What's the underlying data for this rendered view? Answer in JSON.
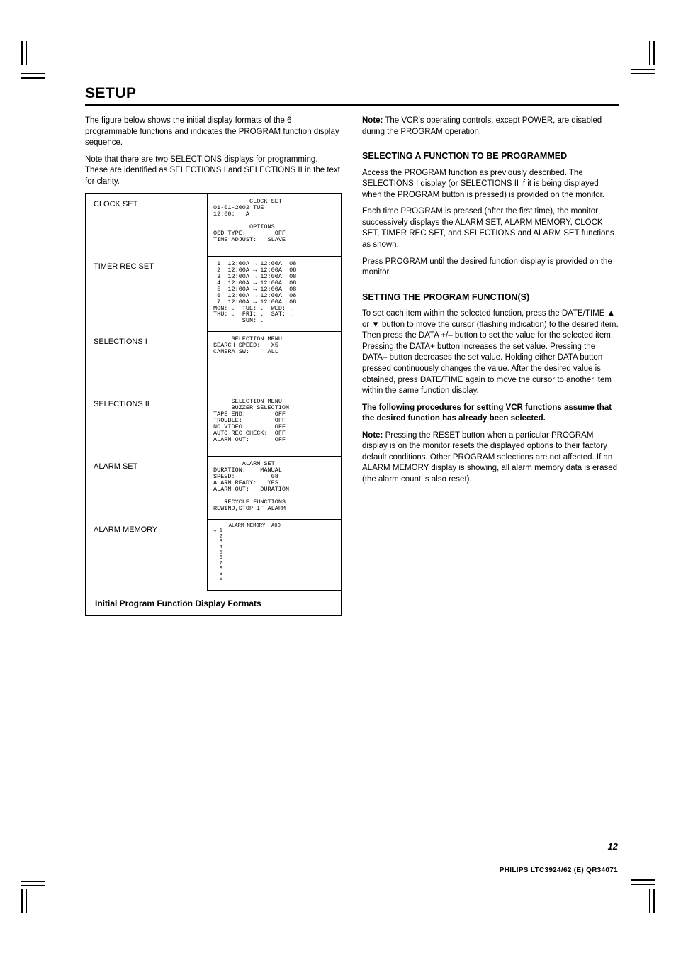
{
  "page": {
    "title": "SETUP",
    "page_number": "12",
    "footer": "PHILIPS LTC3924/62 (E) QR34071"
  },
  "left_column": {
    "intro_paragraphs": [
      "The figure below shows the initial display formats of the 6 programmable functions and indicates the PROGRAM function display sequence.",
      "Note that there are two SELECTIONS displays for programming. These are identified as SELECTIONS I and SELECTIONS II in the text for clarity."
    ],
    "displays": [
      {
        "label": "CLOCK SET",
        "text": "          CLOCK SET\n01-01-2002 TUE\n12:00:   A\n\n          OPTIONS\nOSD TYPE:        OFF\nTIME ADJUST:   SLAVE"
      },
      {
        "label": "TIMER REC SET",
        "text": " 1  12:00A → 12:00A  08\n 2  12:00A → 12:00A  08\n 3  12:00A → 12:00A  08\n 4  12:00A → 12:00A  08\n 5  12:00A → 12:00A  08\n 6  12:00A → 12:00A  08\n 7  12:00A → 12:00A  08\nMON: .  TUE: .  WED: .\nTHU: .  FRI: .  SAT: .\n        SUN: ."
      },
      {
        "label": "SELECTIONS I",
        "text": "     SELECTION MENU\nSEARCH SPEED:   X5\nCAMERA SW:     ALL"
      },
      {
        "label": "SELECTIONS II",
        "text": "     SELECTION MENU\n     BUZZER SELECTION\nTAPE END:        OFF\nTROUBLE:         OFF\nNO VIDEO:        OFF\nAUTO REC CHECK:  OFF\nALARM OUT:       OFF"
      },
      {
        "label": "ALARM SET",
        "text": "        ALARM SET\nDURATION:    MANUAL\nSPEED:          08\nALARM READY:   YES\nALARM OUT:   DURATION\n\n   RECYCLE FUNCTIONS\nREWIND,STOP IF ALARM"
      },
      {
        "label": "ALARM MEMORY",
        "text": "     ALARM MEMORY  A00\n→ 1\n  2\n  3\n  4\n  5\n  6\n  7\n  8\n  9\n  0"
      }
    ],
    "caption": "Initial Program Function Display Formats"
  },
  "right_column": {
    "note1_label": "Note:",
    "note1_text": "The VCR's operating controls, except POWER, are disabled during the PROGRAM operation.",
    "heading1": "SELECTING A FUNCTION TO BE PROGRAMMED",
    "p1": "Access the PROGRAM function as previously described. The SELECTIONS I display (or SELECTIONS II if it is being displayed when the PROGRAM button is pressed) is provided on the monitor.",
    "p2": "Each time PROGRAM is pressed (after the first time), the monitor successively displays the ALARM SET, ALARM MEMORY, CLOCK SET, TIMER REC SET, and SELECTIONS and ALARM SET functions as shown.",
    "p3": "Press PROGRAM until the desired function display is provided on the monitor.",
    "heading2": "SETTING THE PROGRAM FUNCTION(S)",
    "p4": "To set each item within the selected function, press the DATE/TIME ▲ or ▼ button to move the cursor (flashing indication) to the desired item. Then press the DATA +/– button to set the value for the selected item. Pressing the DATA+ button increases the set value. Pressing the DATA– button decreases the set value. Holding either DATA button pressed continuously changes the value. After the desired value is obtained, press DATE/TIME again to move the cursor to another item within the same function display.",
    "bold_para": "The following procedures for setting VCR functions assume that the desired function has already been selected.",
    "note2_label": "Note:",
    "note2_text": "Pressing the RESET button when a particular PROGRAM display is on the monitor resets the displayed options to their factory default conditions. Other PROGRAM selections are not affected. If an ALARM MEMORY display is showing, all alarm memory data is erased (the alarm count is also reset)."
  }
}
